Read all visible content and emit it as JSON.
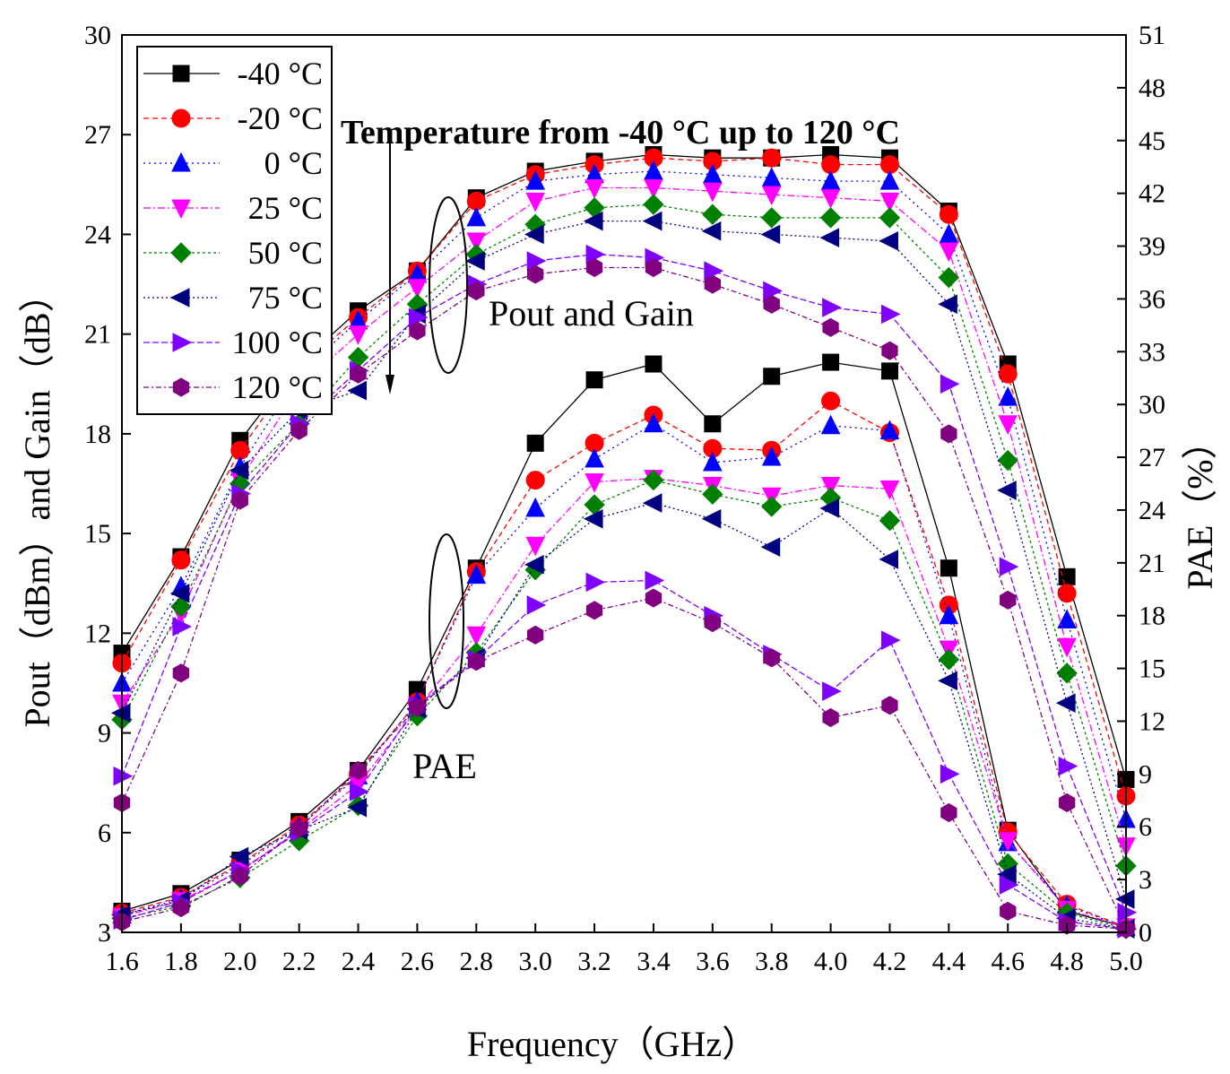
{
  "chart_data": {
    "type": "line",
    "x": [
      1.6,
      1.8,
      2.0,
      2.2,
      2.4,
      2.6,
      2.8,
      3.0,
      3.2,
      3.4,
      3.6,
      3.8,
      4.0,
      4.2,
      4.4,
      4.6,
      4.8,
      5.0
    ],
    "xlabel": "Frequency（GHz）",
    "ylabel": "Pout（dBm）and Gain（dB）",
    "y2label": "PAE（%）",
    "xlim": [
      1.6,
      5.0
    ],
    "ylim": [
      3,
      30
    ],
    "y2lim": [
      0,
      51
    ],
    "xticks": [
      "1.6",
      "1.8",
      "2.0",
      "2.2",
      "2.4",
      "2.6",
      "2.8",
      "3.0",
      "3.2",
      "3.4",
      "3.6",
      "3.8",
      "4.0",
      "4.2",
      "4.4",
      "4.6",
      "4.8",
      "5.0"
    ],
    "yticks": [
      "3",
      "6",
      "9",
      "12",
      "15",
      "18",
      "21",
      "24",
      "27",
      "30"
    ],
    "y2ticks": [
      "0",
      "3",
      "6",
      "9",
      "12",
      "15",
      "18",
      "21",
      "24",
      "27",
      "30",
      "33",
      "36",
      "39",
      "42",
      "45",
      "48",
      "51"
    ],
    "legend_position": "top-left",
    "annotations": {
      "temperature": "Temperature from -40 °C up to 120 °C",
      "pout_gain": "Pout and Gain",
      "pae": "PAE"
    },
    "series": [
      {
        "name": "-40 °C",
        "color": "#000000",
        "marker": "square",
        "dash": "",
        "pout": [
          11.4,
          14.3,
          17.8,
          20.1,
          21.7,
          22.9,
          25.1,
          25.9,
          26.2,
          26.4,
          26.3,
          26.3,
          26.4,
          26.3,
          24.7,
          20.1,
          13.7,
          7.6
        ],
        "pae": [
          1.2,
          2.2,
          4.1,
          6.3,
          9.2,
          13.8,
          20.7,
          27.8,
          31.4,
          32.3,
          28.9,
          31.6,
          32.4,
          31.9,
          20.7,
          5.8,
          1.2,
          0.3
        ]
      },
      {
        "name": "-20 °C",
        "color": "#ff0000",
        "marker": "circle",
        "dash": "6,4",
        "pout": [
          11.1,
          14.2,
          17.5,
          20.0,
          21.5,
          22.9,
          25.0,
          25.8,
          26.1,
          26.3,
          26.2,
          26.3,
          26.1,
          26.1,
          24.6,
          19.8,
          13.2,
          7.1
        ],
        "pae": [
          1.1,
          2.0,
          3.9,
          6.1,
          9.0,
          13.1,
          20.5,
          25.7,
          27.8,
          29.4,
          27.5,
          27.4,
          30.2,
          28.4,
          18.6,
          5.7,
          1.6,
          0.3
        ]
      },
      {
        "name": "0 °C",
        "color": "#0000ff",
        "marker": "triangle-up",
        "dash": "2,4",
        "pout": [
          10.5,
          13.4,
          17.0,
          19.8,
          21.4,
          22.8,
          24.5,
          25.6,
          25.8,
          25.9,
          25.8,
          25.7,
          25.6,
          25.6,
          24.0,
          19.1,
          12.4,
          6.4
        ],
        "pae": [
          1.0,
          1.9,
          3.8,
          6.0,
          8.9,
          13.1,
          20.3,
          24.1,
          26.9,
          28.9,
          26.7,
          27.0,
          28.8,
          28.5,
          18.0,
          5.1,
          1.5,
          0.3
        ]
      },
      {
        "name": "25 °C",
        "color": "#ff00ff",
        "marker": "triangle-down",
        "dash": "8,3,2,3",
        "pout": [
          9.9,
          12.6,
          16.6,
          19.4,
          21.0,
          22.4,
          23.8,
          25.0,
          25.4,
          25.4,
          25.3,
          25.2,
          25.1,
          25.0,
          23.5,
          18.3,
          11.6,
          5.6
        ],
        "pae": [
          0.9,
          1.8,
          3.5,
          5.8,
          8.4,
          12.7,
          16.9,
          22.0,
          25.6,
          25.8,
          25.4,
          24.8,
          25.4,
          25.2,
          16.1,
          5.2,
          1.3,
          0.3
        ]
      },
      {
        "name": "50 °C",
        "color": "#008000",
        "marker": "diamond",
        "dash": "3,3",
        "pout": [
          9.4,
          12.8,
          16.5,
          18.3,
          20.3,
          21.9,
          23.4,
          24.3,
          24.8,
          24.9,
          24.6,
          24.5,
          24.5,
          24.5,
          22.7,
          17.2,
          10.8,
          5.0
        ],
        "pae": [
          0.8,
          1.5,
          3.1,
          5.2,
          7.2,
          12.3,
          15.9,
          20.6,
          24.3,
          25.7,
          24.9,
          24.2,
          24.7,
          23.4,
          15.5,
          3.9,
          1.1,
          0.2
        ]
      },
      {
        "name": "75 °C",
        "color": "#000080",
        "marker": "triangle-left",
        "dash": "2,3",
        "pout": [
          9.6,
          13.2,
          16.9,
          18.7,
          19.3,
          21.6,
          23.2,
          24.0,
          24.4,
          24.4,
          24.1,
          24.0,
          23.9,
          23.8,
          21.9,
          16.3,
          9.9,
          4.0
        ],
        "pae": [
          1.0,
          1.8,
          4.3,
          5.8,
          7.1,
          12.7,
          15.6,
          20.9,
          23.5,
          24.4,
          23.5,
          21.9,
          24.1,
          21.2,
          14.3,
          3.3,
          0.8,
          0.2
        ]
      },
      {
        "name": "100 °C",
        "color": "#8000ff",
        "marker": "triangle-right",
        "dash": "7,3",
        "pout": [
          7.7,
          12.2,
          16.2,
          18.3,
          19.9,
          21.5,
          22.5,
          23.2,
          23.4,
          23.3,
          22.9,
          22.3,
          21.8,
          21.6,
          19.5,
          14.0,
          8.0,
          3.6
        ],
        "pae": [
          0.7,
          1.7,
          3.5,
          5.7,
          8.0,
          12.9,
          15.5,
          18.6,
          19.9,
          20.0,
          18.0,
          15.8,
          13.7,
          16.6,
          9.0,
          2.7,
          0.6,
          0.2
        ]
      },
      {
        "name": "120 °C",
        "color": "#800080",
        "marker": "hexagon",
        "dash": "6,3,2,3",
        "pout": [
          6.9,
          10.8,
          16.0,
          18.1,
          19.8,
          21.1,
          22.3,
          22.8,
          23.0,
          23.0,
          22.5,
          21.9,
          21.2,
          20.5,
          18.0,
          13.0,
          6.9,
          3.1
        ],
        "pae": [
          0.6,
          1.4,
          3.2,
          5.9,
          9.2,
          12.8,
          15.4,
          16.9,
          18.3,
          19.0,
          17.6,
          15.6,
          12.2,
          12.9,
          6.8,
          1.2,
          0.4,
          0.2
        ]
      }
    ]
  }
}
